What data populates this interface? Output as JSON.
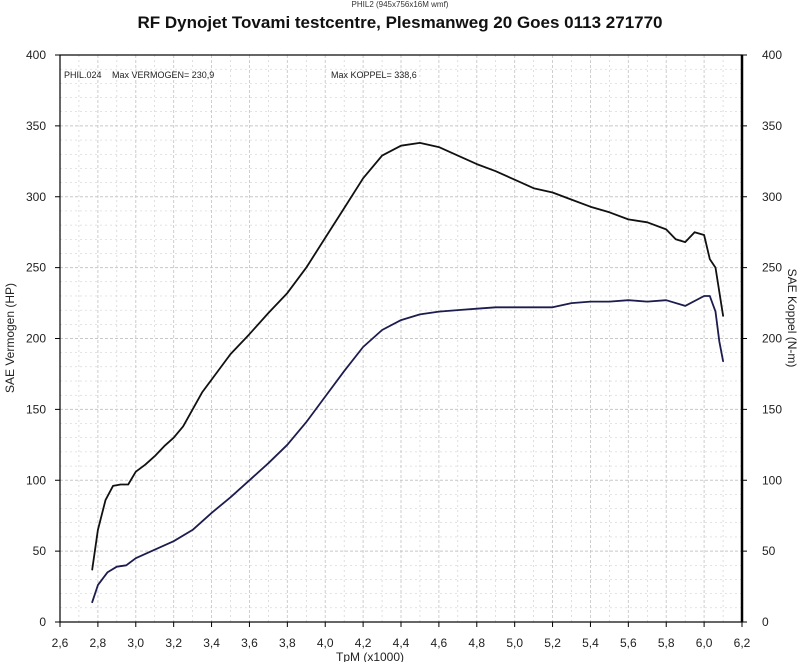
{
  "header": {
    "file_label": "PHIL2 (945x756x16M wmf)",
    "title": "RF Dynojet Tovami testcentre, Plesmanweg 20 Goes 0113 271770"
  },
  "annotations": {
    "run_label": "PHIL.024",
    "max_vermogen": "Max VERMOGEN= 230,9",
    "max_koppel": "Max KOPPEL= 338,6"
  },
  "colors": {
    "koppel_line": "#111111",
    "vermogen_line": "#1c1c4e",
    "grid": "#c8c8c8",
    "frame": "#000000"
  },
  "chart_data": {
    "type": "line",
    "xlabel": "TpM (x1000)",
    "ylabel_left": "SAE Vermogen (HP)",
    "ylabel_right": "SAE Koppel (N-m)",
    "xlim": [
      2.6,
      6.2
    ],
    "ylim": [
      0,
      400
    ],
    "x_ticks": [
      "2,6",
      "2,8",
      "3,0",
      "3,2",
      "3,4",
      "3,6",
      "3,8",
      "4,0",
      "4,2",
      "4,4",
      "4,6",
      "4,8",
      "5,0",
      "5,2",
      "5,4",
      "5,6",
      "5,8",
      "6,0",
      "6,2"
    ],
    "y_ticks": [
      "0",
      "50",
      "100",
      "150",
      "200",
      "250",
      "300",
      "350",
      "400"
    ],
    "grid": true,
    "series": [
      {
        "name": "SAE Koppel",
        "x": [
          2.77,
          2.8,
          2.84,
          2.88,
          2.92,
          2.96,
          3.0,
          3.05,
          3.1,
          3.15,
          3.2,
          3.25,
          3.3,
          3.35,
          3.4,
          3.5,
          3.6,
          3.7,
          3.8,
          3.9,
          4.0,
          4.1,
          4.2,
          4.3,
          4.4,
          4.5,
          4.6,
          4.7,
          4.8,
          4.9,
          5.0,
          5.1,
          5.2,
          5.3,
          5.4,
          5.5,
          5.6,
          5.7,
          5.8,
          5.85,
          5.9,
          5.95,
          6.0,
          6.03,
          6.06,
          6.1
        ],
        "y": [
          37,
          65,
          86,
          96,
          97,
          97,
          106,
          111,
          117,
          124,
          130,
          138,
          150,
          162,
          171,
          189,
          203,
          218,
          232,
          250,
          271,
          292,
          313,
          329,
          336,
          338,
          335,
          329,
          323,
          318,
          312,
          306,
          303,
          298,
          293,
          289,
          284,
          282,
          277,
          270,
          268,
          275,
          273,
          256,
          250,
          216
        ]
      },
      {
        "name": "SAE Vermogen",
        "x": [
          2.77,
          2.8,
          2.85,
          2.9,
          2.95,
          3.0,
          3.1,
          3.2,
          3.3,
          3.4,
          3.5,
          3.6,
          3.7,
          3.8,
          3.9,
          4.0,
          4.1,
          4.2,
          4.3,
          4.4,
          4.5,
          4.6,
          4.7,
          4.8,
          4.9,
          5.0,
          5.1,
          5.2,
          5.3,
          5.4,
          5.5,
          5.6,
          5.7,
          5.8,
          5.9,
          6.0,
          6.03,
          6.06,
          6.08,
          6.1
        ],
        "y": [
          14,
          26,
          35,
          39,
          40,
          45,
          51,
          57,
          65,
          77,
          88,
          100,
          112,
          125,
          141,
          159,
          177,
          194,
          206,
          213,
          217,
          219,
          220,
          221,
          222,
          222,
          222,
          222,
          225,
          226,
          226,
          227,
          226,
          227,
          223,
          230,
          230,
          219,
          198,
          184
        ]
      }
    ]
  }
}
